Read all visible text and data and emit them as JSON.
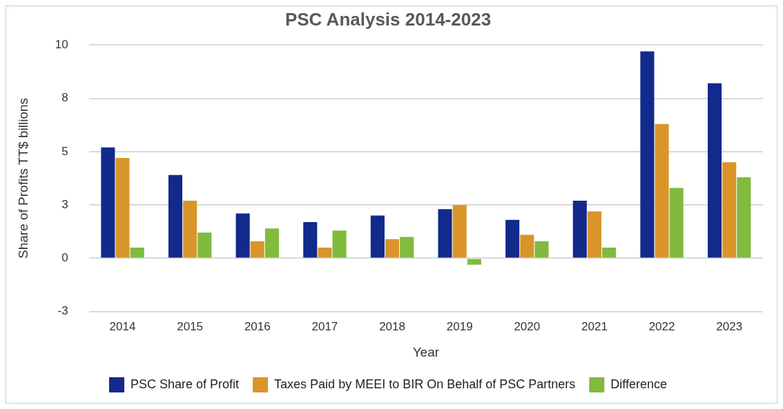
{
  "chart_data": {
    "type": "bar",
    "title": "PSC Analysis 2014-2023",
    "xlabel": "Year",
    "ylabel": "Share of Profits TT$ billions",
    "categories": [
      "2014",
      "2015",
      "2016",
      "2017",
      "2018",
      "2019",
      "2020",
      "2021",
      "2022",
      "2023"
    ],
    "series": [
      {
        "name": "PSC Share of Profit",
        "color": "#112a8c",
        "values": [
          5.2,
          3.9,
          2.1,
          1.7,
          2.0,
          2.3,
          1.8,
          2.7,
          9.7,
          8.2
        ]
      },
      {
        "name": "Taxes Paid by MEEI to BIR On Behalf of PSC Partners",
        "color": "#d9952a",
        "values": [
          4.7,
          2.7,
          0.8,
          0.5,
          0.9,
          2.5,
          1.1,
          2.2,
          6.3,
          4.5
        ]
      },
      {
        "name": "Difference",
        "color": "#80bb3d",
        "values": [
          0.5,
          1.2,
          1.4,
          1.3,
          1.0,
          -0.3,
          0.8,
          0.5,
          3.3,
          3.8
        ]
      }
    ],
    "ylim": [
      -2.5,
      10
    ],
    "yticks": [
      {
        "value": -2.5,
        "label": "-3"
      },
      0,
      {
        "value": 2.5,
        "label": "3"
      },
      5,
      {
        "value": 7.5,
        "label": "8"
      },
      10
    ],
    "grid": "y",
    "legend": "bottom"
  }
}
